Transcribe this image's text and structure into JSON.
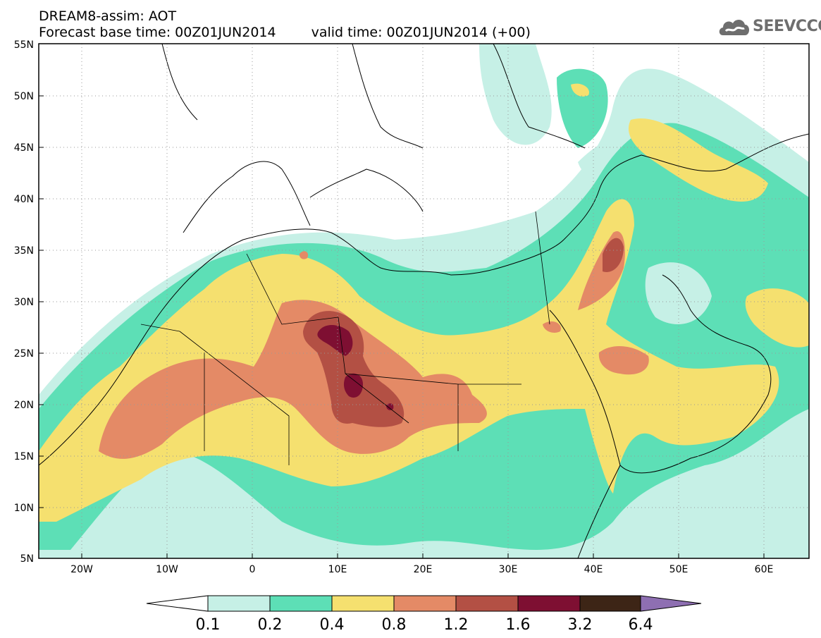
{
  "title": {
    "line1": "DREAM8-assim: AOT",
    "base_time": "Forecast base time: 00Z01JUN2014",
    "valid_time": "valid time: 00Z01JUN2014 (+00)"
  },
  "logo": {
    "text": "SEEVCCC",
    "icon": "cloud-icon"
  },
  "map": {
    "lat_labels": [
      "55N",
      "50N",
      "45N",
      "40N",
      "35N",
      "30N",
      "25N",
      "20N",
      "15N",
      "10N",
      "5N"
    ],
    "lon_labels": [
      "20W",
      "10W",
      "0",
      "10E",
      "20E",
      "30E",
      "40E",
      "50E",
      "60E"
    ]
  },
  "colorbar": {
    "labels": [
      "0.1",
      "0.2",
      "0.4",
      "0.8",
      "1.2",
      "1.6",
      "3.2",
      "6.4"
    ],
    "colors": {
      "below": "#ffffff",
      "c1": "#c6f0e6",
      "c2": "#5ddfb6",
      "c3": "#f5e06f",
      "c4": "#e48a66",
      "c5": "#b35044",
      "c6": "#7e0f32",
      "c7": "#3d2516",
      "above": "#8e6fb2"
    }
  }
}
